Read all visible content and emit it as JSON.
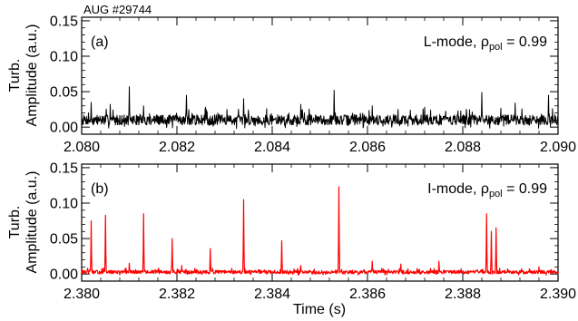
{
  "figure": {
    "header": "AUG #29744",
    "xlabel": "Time (s)"
  },
  "chart_data": [
    {
      "type": "line",
      "panel_label": "(a)",
      "mode_label": "L-mode, ",
      "rho_symbol": "ρ",
      "rho_subscript": "pol",
      "rho_value": " = 0.99",
      "ylabel_line1": "Turb.",
      "ylabel_line2": "Amplitude (a.u.)",
      "xlim": [
        2.08,
        2.09
      ],
      "ylim": [
        -0.01,
        0.155
      ],
      "x_ticks": [
        "2.080",
        "2.082",
        "2.084",
        "2.086",
        "2.088",
        "2.090"
      ],
      "y_ticks": [
        "0.00",
        "0.05",
        "0.10",
        "0.15"
      ],
      "series": [
        {
          "color": "#000000",
          "baseline": 0.008,
          "noise": 0.018,
          "samples": 1200,
          "seed": 7,
          "peaks": [
            [
              2.0802,
              0.035
            ],
            [
              2.0806,
              0.032
            ],
            [
              2.081,
              0.057
            ],
            [
              2.0813,
              0.03
            ],
            [
              2.0822,
              0.045
            ],
            [
              2.0826,
              0.028
            ],
            [
              2.0834,
              0.04
            ],
            [
              2.0846,
              0.032
            ],
            [
              2.0853,
              0.052
            ],
            [
              2.0861,
              0.03
            ],
            [
              2.0872,
              0.028
            ],
            [
              2.0884,
              0.049
            ],
            [
              2.0891,
              0.034
            ],
            [
              2.0898,
              0.045
            ]
          ]
        }
      ]
    },
    {
      "type": "line",
      "panel_label": "(b)",
      "mode_label": "I-mode, ",
      "rho_symbol": "ρ",
      "rho_subscript": "pol",
      "rho_value": " = 0.99",
      "ylabel_line1": "Turb.",
      "ylabel_line2": "Amplitude (a.u.)",
      "xlim": [
        2.38,
        2.39
      ],
      "ylim": [
        -0.01,
        0.155
      ],
      "x_ticks": [
        "2.380",
        "2.382",
        "2.384",
        "2.386",
        "2.388",
        "2.390"
      ],
      "y_ticks": [
        "0.00",
        "0.05",
        "0.10",
        "0.15"
      ],
      "series": [
        {
          "color": "#ff0000",
          "baseline": 0.002,
          "noise": 0.006,
          "samples": 1200,
          "seed": 13,
          "peaks": [
            [
              2.3802,
              0.075
            ],
            [
              2.3805,
              0.083
            ],
            [
              2.3813,
              0.085
            ],
            [
              2.3819,
              0.05
            ],
            [
              2.3827,
              0.036
            ],
            [
              2.3834,
              0.105
            ],
            [
              2.3842,
              0.047
            ],
            [
              2.3854,
              0.123
            ],
            [
              2.3861,
              0.018
            ],
            [
              2.3867,
              0.014
            ],
            [
              2.3875,
              0.018
            ],
            [
              2.3885,
              0.085
            ],
            [
              2.3886,
              0.06
            ],
            [
              2.3887,
              0.065
            ],
            [
              2.381,
              0.015
            ],
            [
              2.3821,
              0.012
            ],
            [
              2.3846,
              0.012
            ],
            [
              2.3896,
              0.01
            ]
          ]
        }
      ]
    }
  ]
}
